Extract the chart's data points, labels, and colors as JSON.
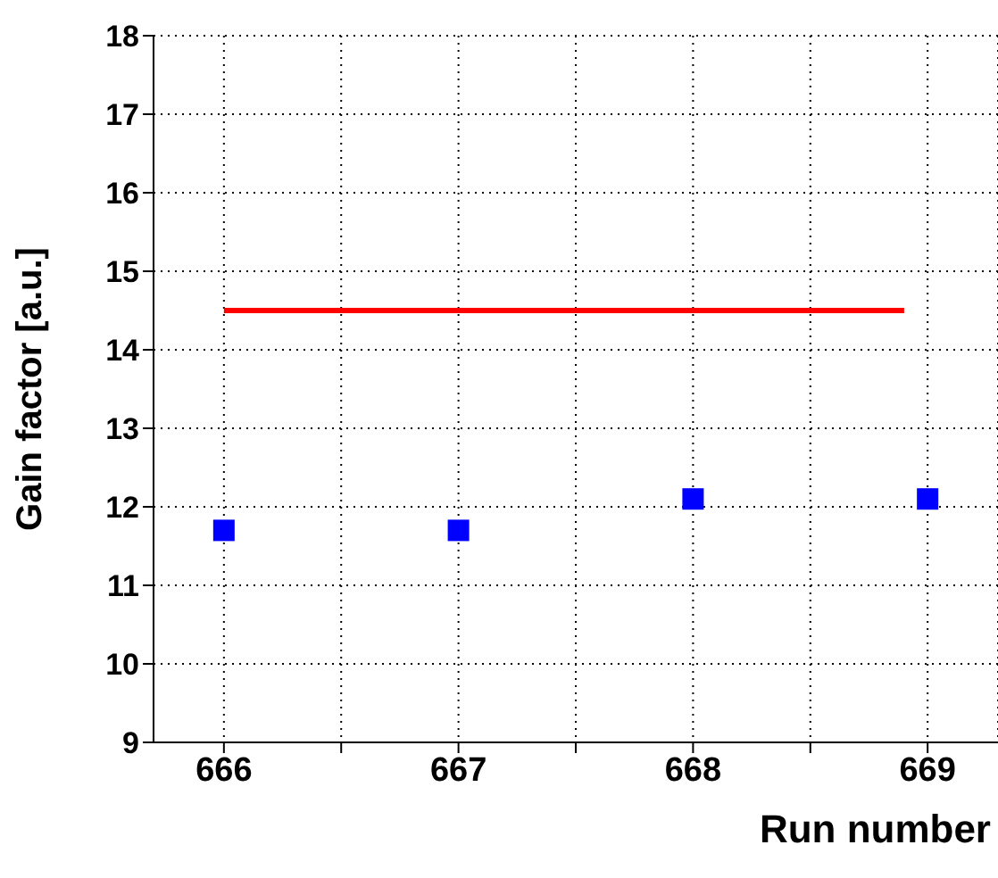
{
  "chart_data": {
    "type": "scatter",
    "xlabel": "Run number",
    "ylabel": "Gain factor [a.u.]",
    "xlim": [
      665.7,
      669.3
    ],
    "xticks": [
      666,
      {
        "value": 666.5,
        "label": null
      },
      667,
      {
        "value": 667.5,
        "label": null
      },
      668,
      {
        "value": 668.5,
        "label": null
      },
      669
    ],
    "ylim": [
      9,
      18
    ],
    "yticks": [
      9,
      10,
      11,
      12,
      13,
      14,
      15,
      16,
      17,
      18
    ],
    "grid": true,
    "marker": "square",
    "series": [
      {
        "color": "#0000ff",
        "x": [
          666,
          667,
          668,
          669
        ],
        "values": [
          11.7,
          11.7,
          12.1,
          12.1
        ]
      },
      {
        "type": "line",
        "color": "#ff0000",
        "x": [
          666,
          668.9
        ],
        "values": [
          14.5,
          14.5
        ],
        "marker": "none"
      }
    ]
  }
}
